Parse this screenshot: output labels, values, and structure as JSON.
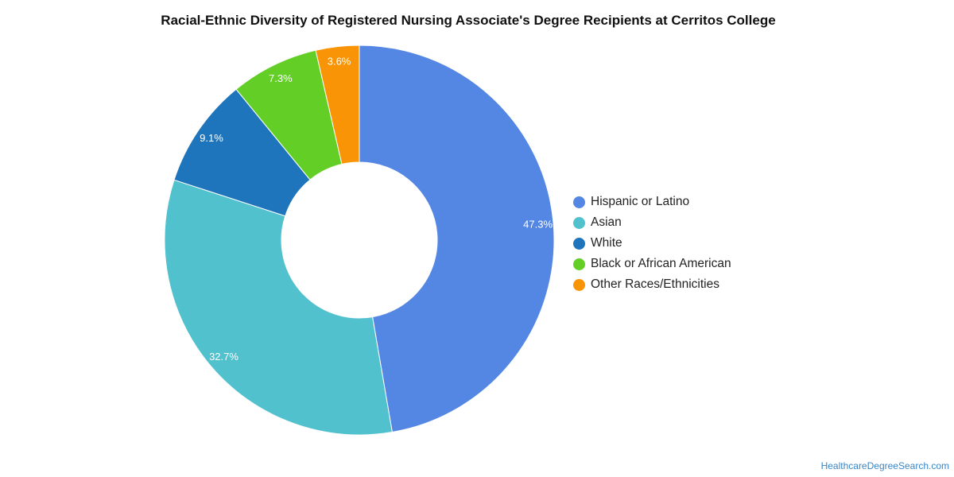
{
  "chart_data": {
    "type": "pie",
    "donut": true,
    "title": "Racial-Ethnic Diversity of Registered Nursing Associate's Degree Recipients at Cerritos College",
    "slices": [
      {
        "label": "Hispanic or Latino",
        "value": 47.3,
        "display": "47.3%",
        "color": "#5486e3"
      },
      {
        "label": "Asian",
        "value": 32.7,
        "display": "32.7%",
        "color": "#51c1ce"
      },
      {
        "label": "White",
        "value": 9.1,
        "display": "9.1%",
        "color": "#1f75bc"
      },
      {
        "label": "Black or African American",
        "value": 7.3,
        "display": "7.3%",
        "color": "#63cf26"
      },
      {
        "label": "Other Races/Ethnicities",
        "value": 3.6,
        "display": "3.6%",
        "color": "#f89406"
      }
    ],
    "legend_position": "right"
  },
  "source_label": "HealthcareDegreeSearch.com"
}
